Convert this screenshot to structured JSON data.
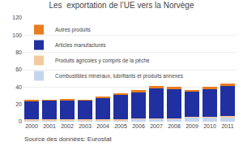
{
  "chart_data": {
    "type": "bar",
    "stacked": true,
    "title": "Les  exportation de l’UE vers la Norvège",
    "categories": [
      "2000",
      "2001",
      "2002",
      "2003",
      "2004",
      "2005",
      "2006",
      "2007",
      "2008",
      "2009",
      "2010",
      "2011"
    ],
    "series": [
      {
        "name": "Combustibles minéraux, lubrifiants et produits annexes",
        "color": "#c5d5ee",
        "values": [
          1.0,
          1.0,
          1.0,
          1.0,
          1.0,
          1.0,
          2.5,
          2.5,
          2.5,
          4.5,
          4.5,
          5.0
        ]
      },
      {
        "name": "Produits agricoles y compris de la pêche",
        "color": "#f5c9a0",
        "values": [
          1.5,
          1.5,
          1.5,
          1.5,
          1.5,
          1.5,
          1.5,
          1.5,
          1.5,
          1.5,
          1.5,
          1.5
        ]
      },
      {
        "name": "Articles manufacturés",
        "color": "#2030a0",
        "values": [
          21.0,
          21.5,
          22.0,
          21.5,
          24.5,
          28.0,
          30.0,
          34.0,
          33.5,
          28.5,
          31.5,
          34.5
        ]
      },
      {
        "name": "Autres produits",
        "color": "#e87c1e",
        "values": [
          1.5,
          1.5,
          1.5,
          1.5,
          2.0,
          2.5,
          2.5,
          3.0,
          3.0,
          2.5,
          2.5,
          3.0
        ]
      }
    ],
    "ylim": [
      0,
      120
    ],
    "yticks": [
      0,
      20,
      40,
      60,
      80,
      100,
      120
    ],
    "grid": true,
    "legend": "upper left",
    "annotations": [
      "Source des données: Eurostat"
    ]
  }
}
